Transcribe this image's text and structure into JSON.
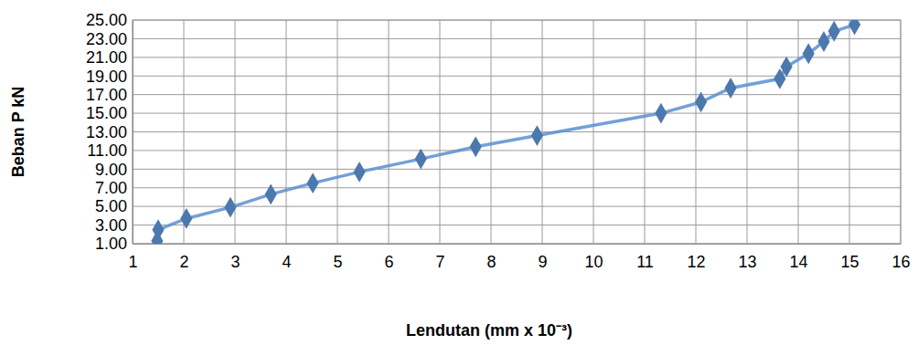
{
  "chart_data": {
    "type": "line",
    "x_label": "Lendutan  (mm x 10⁻³)",
    "y_label": "Beban P kN",
    "x": [
      1.48,
      1.5,
      2.05,
      2.91,
      3.7,
      4.52,
      5.43,
      6.63,
      7.7,
      8.9,
      11.32,
      12.1,
      12.68,
      13.64,
      13.77,
      14.2,
      14.5,
      14.7,
      15.1
    ],
    "values": [
      1.3,
      2.5,
      3.7,
      4.9,
      6.3,
      7.5,
      8.7,
      10.1,
      11.4,
      12.6,
      15.0,
      16.2,
      17.7,
      18.7,
      20.0,
      21.4,
      22.7,
      23.8,
      24.5
    ],
    "color": "#5b8fd0",
    "marker": "diamond",
    "line_style": "solid",
    "grid": true,
    "xlim": [
      1,
      16
    ],
    "xticks": [
      1,
      2,
      3,
      4,
      5,
      6,
      7,
      8,
      9,
      10,
      11,
      12,
      13,
      14,
      15,
      16
    ],
    "ylim": [
      1,
      25
    ],
    "yticks": [
      {
        "value": 1,
        "label": "1.00"
      },
      {
        "value": 3,
        "label": "3.00"
      },
      {
        "value": 5,
        "label": "5.00"
      },
      {
        "value": 7,
        "label": "7.00"
      },
      {
        "value": 9,
        "label": "9.00"
      },
      {
        "value": 11,
        "label": "11.00"
      },
      {
        "value": 13,
        "label": "13.00"
      },
      {
        "value": 15,
        "label": "15.00"
      },
      {
        "value": 17,
        "label": "17.00"
      },
      {
        "value": 19,
        "label": "19.00"
      },
      {
        "value": 21,
        "label": "21.00"
      },
      {
        "value": 23,
        "label": "23.00"
      },
      {
        "value": 25,
        "label": "25.00"
      }
    ]
  }
}
